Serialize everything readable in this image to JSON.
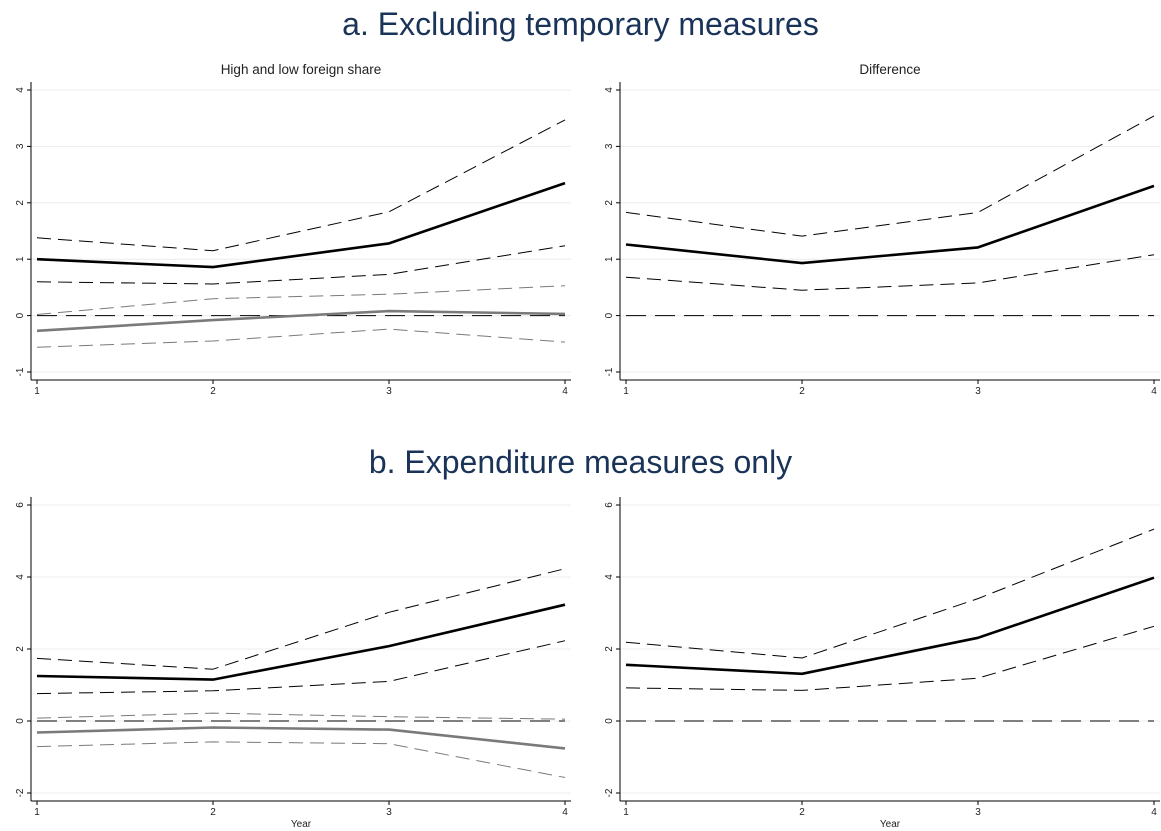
{
  "sections": [
    {
      "title": "a. Excluding temporary measures"
    },
    {
      "title": "b. Expenditure measures only"
    }
  ],
  "chart_data": [
    {
      "type": "line",
      "title": "High and low foreign share",
      "xlabel": "",
      "ylabel": "",
      "x": [
        1,
        2,
        3,
        4
      ],
      "xticks": [
        "1",
        "2",
        "3",
        "4"
      ],
      "ylim": [
        -1,
        4
      ],
      "yticks": [
        "-1",
        "0",
        "1",
        "2",
        "3",
        "4"
      ],
      "series": [
        {
          "values": [
            1.0,
            0.86,
            1.28,
            2.35
          ],
          "color": "#000000",
          "style": "solid",
          "width": 2.6
        },
        {
          "values": [
            1.38,
            1.15,
            1.84,
            3.47
          ],
          "color": "#000000",
          "style": "dash",
          "width": 1
        },
        {
          "values": [
            0.6,
            0.56,
            0.73,
            1.24
          ],
          "color": "#000000",
          "style": "dash",
          "width": 1
        },
        {
          "values": [
            -0.27,
            -0.08,
            0.08,
            0.03
          ],
          "color": "#7a7a7a",
          "style": "solid",
          "width": 2.6
        },
        {
          "values": [
            0.02,
            0.3,
            0.38,
            0.53
          ],
          "color": "#7a7a7a",
          "style": "dash",
          "width": 1
        },
        {
          "values": [
            -0.56,
            -0.45,
            -0.24,
            -0.47
          ],
          "color": "#7a7a7a",
          "style": "dash",
          "width": 1
        },
        {
          "values": [
            0,
            0,
            0,
            0
          ],
          "color": "#000000",
          "style": "longdash",
          "width": 1
        }
      ]
    },
    {
      "type": "line",
      "title": "Difference",
      "xlabel": "",
      "ylabel": "",
      "x": [
        1,
        2,
        3,
        4
      ],
      "xticks": [
        "1",
        "2",
        "3",
        "4"
      ],
      "ylim": [
        -1,
        4
      ],
      "yticks": [
        "-1",
        "0",
        "1",
        "2",
        "3",
        "4"
      ],
      "series": [
        {
          "values": [
            1.26,
            0.93,
            1.21,
            2.3
          ],
          "color": "#000000",
          "style": "solid",
          "width": 2.6
        },
        {
          "values": [
            1.83,
            1.41,
            1.83,
            3.54
          ],
          "color": "#000000",
          "style": "dash",
          "width": 1
        },
        {
          "values": [
            0.68,
            0.45,
            0.58,
            1.08
          ],
          "color": "#000000",
          "style": "dash",
          "width": 1
        },
        {
          "values": [
            0,
            0,
            0,
            0
          ],
          "color": "#000000",
          "style": "longdash",
          "width": 1
        }
      ]
    },
    {
      "type": "line",
      "title": "",
      "xlabel": "Year",
      "ylabel": "",
      "x": [
        1,
        2,
        3,
        4
      ],
      "xticks": [
        "1",
        "2",
        "3",
        "4"
      ],
      "ylim": [
        -2,
        6
      ],
      "yticks": [
        "-2",
        "0",
        "2",
        "4",
        "6"
      ],
      "series": [
        {
          "values": [
            1.25,
            1.15,
            2.08,
            3.23
          ],
          "color": "#000000",
          "style": "solid",
          "width": 2.6
        },
        {
          "values": [
            1.74,
            1.44,
            3.02,
            4.23
          ],
          "color": "#000000",
          "style": "dash",
          "width": 1
        },
        {
          "values": [
            0.76,
            0.84,
            1.1,
            2.23
          ],
          "color": "#000000",
          "style": "dash",
          "width": 1
        },
        {
          "values": [
            -0.32,
            -0.18,
            -0.24,
            -0.76
          ],
          "color": "#7a7a7a",
          "style": "solid",
          "width": 2.6
        },
        {
          "values": [
            0.08,
            0.22,
            0.12,
            0.05
          ],
          "color": "#7a7a7a",
          "style": "dash",
          "width": 1
        },
        {
          "values": [
            -0.71,
            -0.58,
            -0.63,
            -1.57
          ],
          "color": "#7a7a7a",
          "style": "dash",
          "width": 1
        },
        {
          "values": [
            0,
            0,
            0,
            0
          ],
          "color": "#000000",
          "style": "longdash",
          "width": 1
        }
      ]
    },
    {
      "type": "line",
      "title": "",
      "xlabel": "Year",
      "ylabel": "",
      "x": [
        1,
        2,
        3,
        4
      ],
      "xticks": [
        "1",
        "2",
        "3",
        "4"
      ],
      "ylim": [
        -2,
        6
      ],
      "yticks": [
        "-2",
        "0",
        "2",
        "4",
        "6"
      ],
      "series": [
        {
          "values": [
            1.56,
            1.31,
            2.31,
            3.98
          ],
          "color": "#000000",
          "style": "solid",
          "width": 2.6
        },
        {
          "values": [
            2.19,
            1.75,
            3.4,
            5.33
          ],
          "color": "#000000",
          "style": "dash",
          "width": 1
        },
        {
          "values": [
            0.92,
            0.85,
            1.19,
            2.63
          ],
          "color": "#000000",
          "style": "dash",
          "width": 1
        },
        {
          "values": [
            0,
            0,
            0,
            0
          ],
          "color": "#000000",
          "style": "longdash",
          "width": 1
        }
      ]
    }
  ]
}
